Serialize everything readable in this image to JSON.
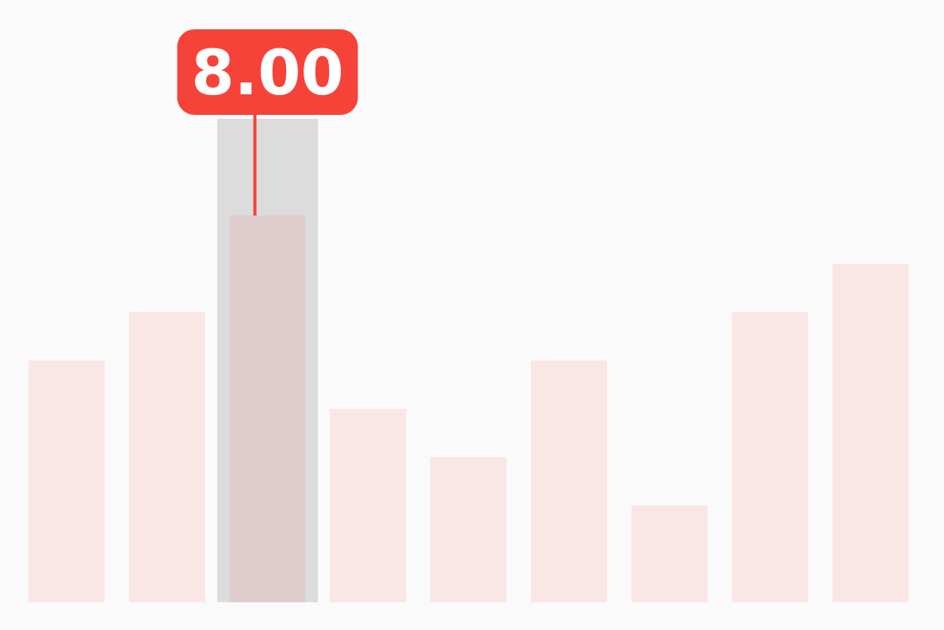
{
  "chart_data": {
    "type": "bar",
    "values": [
      5,
      6,
      8,
      4,
      3,
      5,
      2,
      6,
      7
    ],
    "ylim": [
      0,
      10
    ],
    "highlighted_index": 2,
    "tooltip": {
      "label": "8.00"
    },
    "grid": false,
    "legend": "none",
    "colors": {
      "background": "#fafafa",
      "bar": "#f9e6e5",
      "highlighted_bar": "#dfcdcd",
      "hover_band": "#dcdcdc",
      "tooltip_bg": "#f5433a",
      "tooltip_text": "#ffffff"
    }
  }
}
